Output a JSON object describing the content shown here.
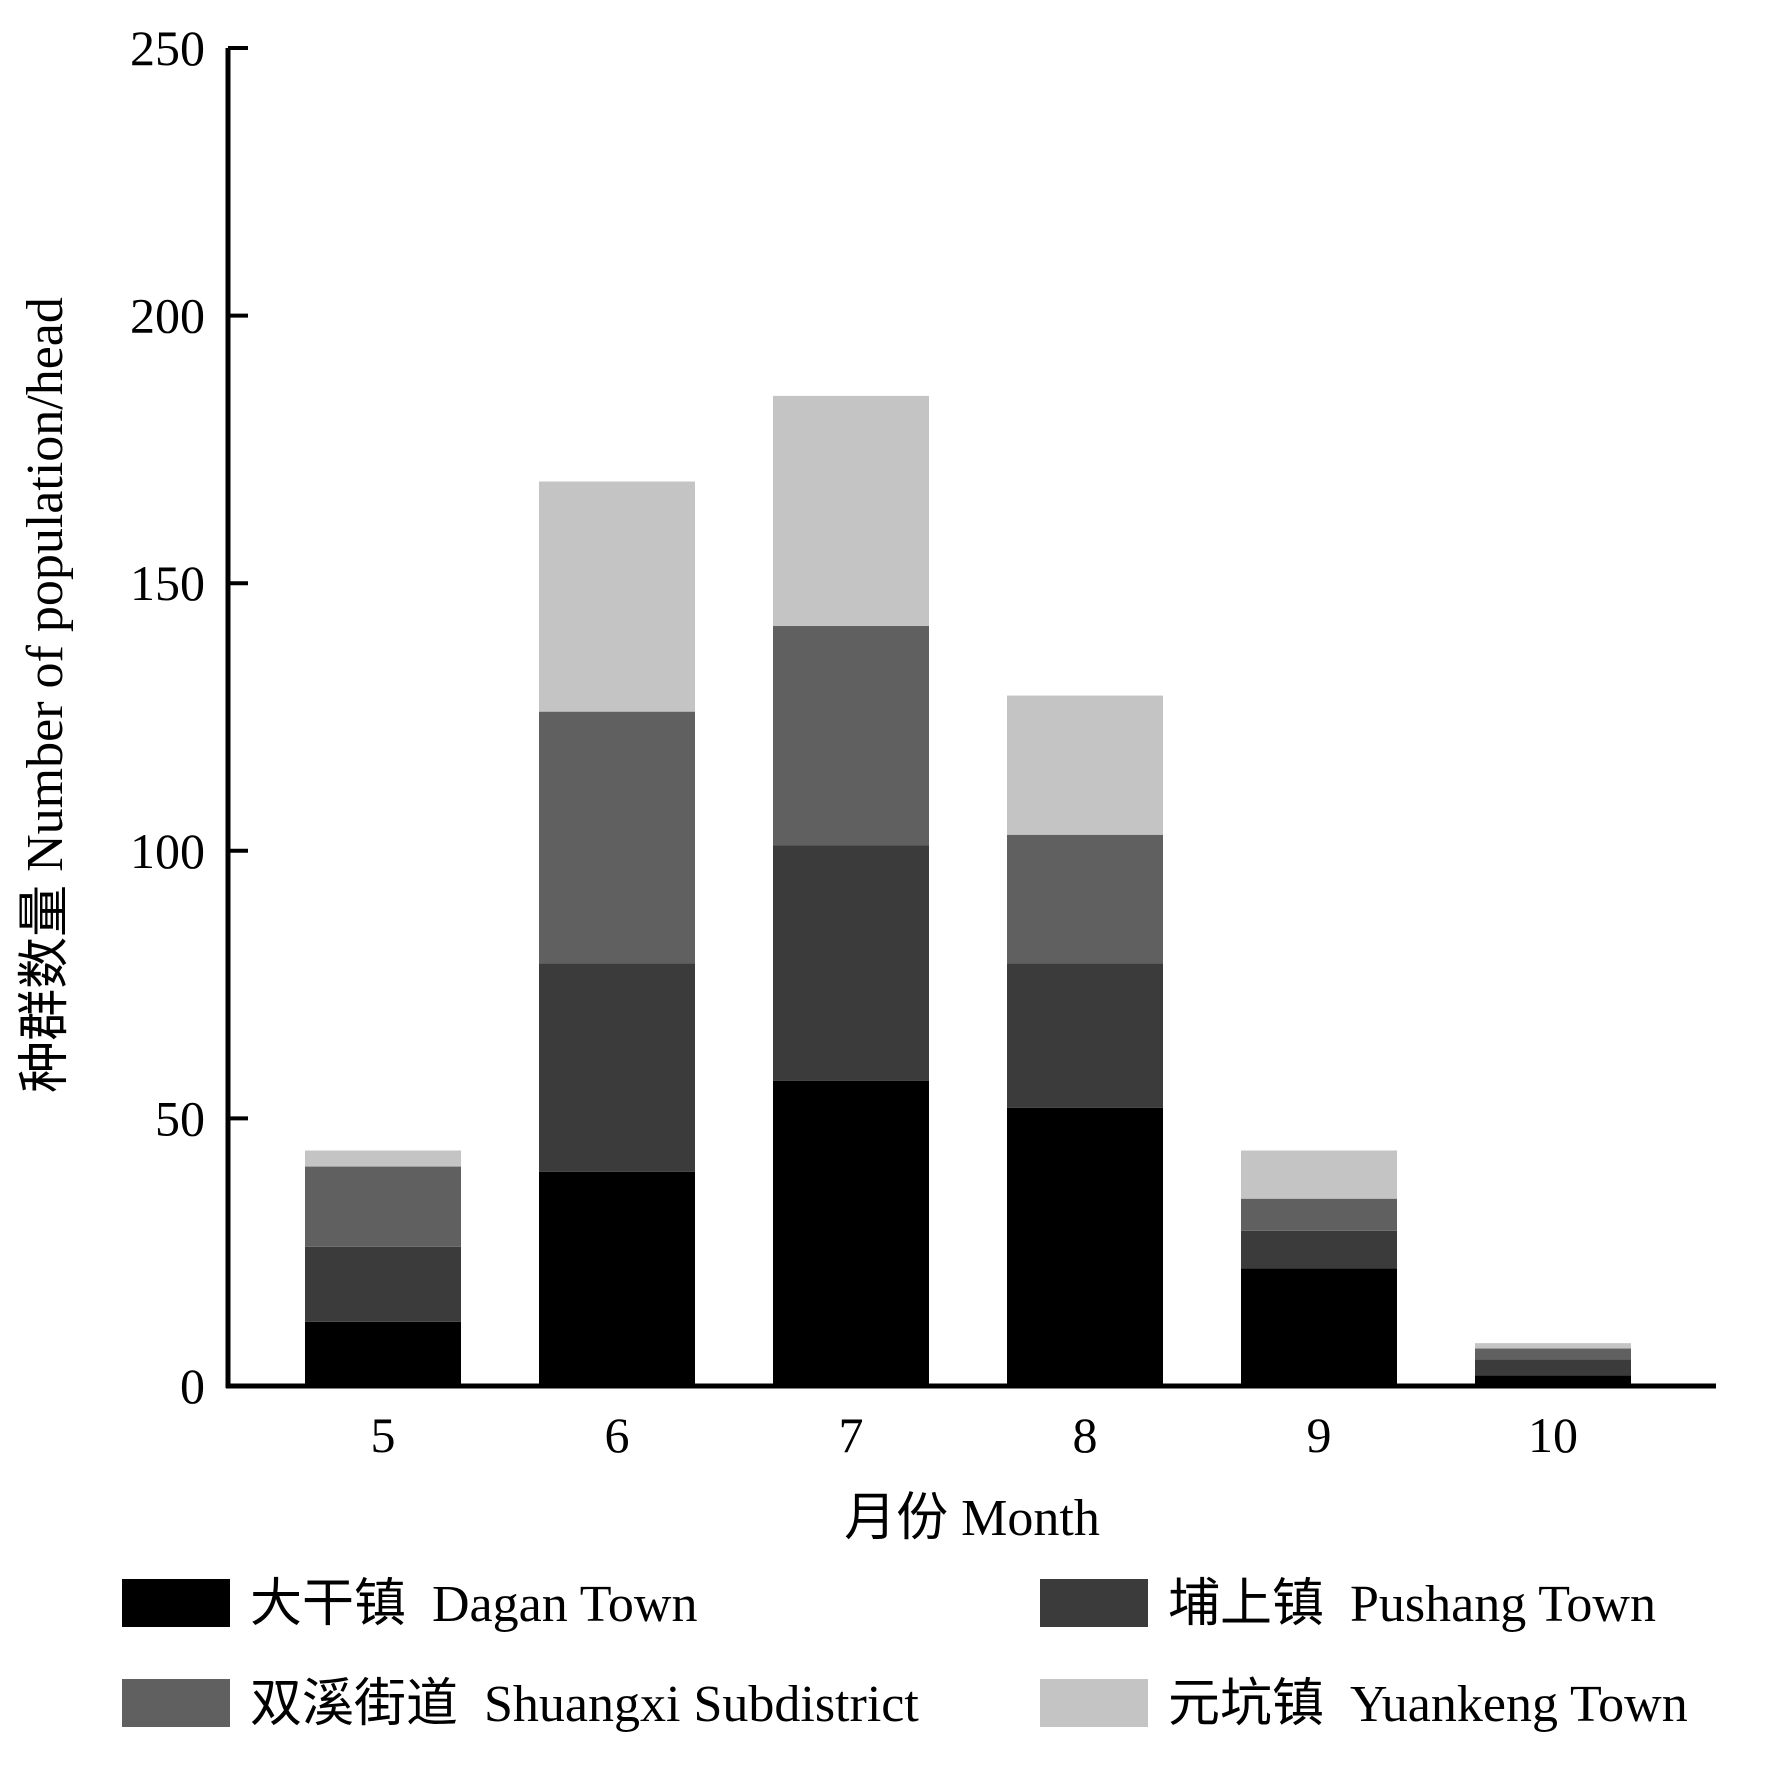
{
  "chart_data": {
    "type": "bar",
    "stacked": true,
    "categories": [
      "5",
      "6",
      "7",
      "8",
      "9",
      "10"
    ],
    "series": [
      {
        "name": "大干镇  Dagan Town",
        "color": "#000000",
        "values": [
          12,
          40,
          57,
          52,
          22,
          2
        ]
      },
      {
        "name": "埔上镇  Pushang Town",
        "color": "#3b3b3b",
        "values": [
          14,
          39,
          44,
          27,
          7,
          3
        ]
      },
      {
        "name": "双溪街道  Shuangxi Subdistrict",
        "color": "#606060",
        "values": [
          15,
          47,
          41,
          24,
          6,
          2
        ]
      },
      {
        "name": "元坑镇  Yuankeng Town",
        "color": "#c4c4c4",
        "values": [
          3,
          43,
          43,
          26,
          9,
          1
        ]
      }
    ],
    "xlabel": "月份  Month",
    "ylabel": "种群数量  Number of population/head",
    "ylim": [
      0,
      250
    ],
    "yticks": [
      "0",
      "50",
      "100",
      "150",
      "200",
      "250"
    ],
    "grid": false,
    "legend_position": "bottom"
  }
}
